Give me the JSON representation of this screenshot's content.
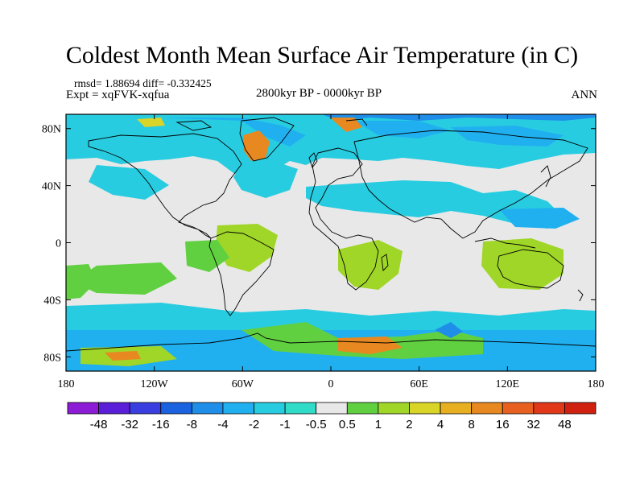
{
  "title": "Coldest Month Mean Surface Air Temperature (in C)",
  "stats": "rmsd= 1.88694  diff= -0.332425",
  "expt": "Expt = xqFVK-xqfua",
  "period": "2800kyr BP - 0000kyr BP",
  "season": "ANN",
  "lat_ticks": [
    {
      "label": "80N",
      "lat": 80
    },
    {
      "label": "40N",
      "lat": 40
    },
    {
      "label": "0",
      "lat": 0
    },
    {
      "label": "40S",
      "lat": -40
    },
    {
      "label": "80S",
      "lat": -80
    }
  ],
  "lon_ticks": [
    {
      "label": "180",
      "lon": -180
    },
    {
      "label": "120W",
      "lon": -120
    },
    {
      "label": "60W",
      "lon": -60
    },
    {
      "label": "0",
      "lon": 0
    },
    {
      "label": "60E",
      "lon": 60
    },
    {
      "label": "120E",
      "lon": 120
    },
    {
      "label": "180",
      "lon": 180
    }
  ],
  "colorbar": {
    "labels": [
      "-48",
      "-32",
      "-16",
      "-8",
      "-4",
      "-2",
      "-1",
      "-0.5",
      "0.5",
      "1",
      "2",
      "4",
      "8",
      "16",
      "32",
      "48"
    ],
    "colors": [
      "#8c1cd6",
      "#5a1ed8",
      "#3a3ee0",
      "#1a62e0",
      "#1e8ee8",
      "#20b0f0",
      "#28cce0",
      "#30dcc8",
      "#e8e8e8",
      "#60d040",
      "#a0d628",
      "#d8d428",
      "#e8b020",
      "#e88820",
      "#e86020",
      "#e03818",
      "#d02010"
    ]
  },
  "map_palette": {
    "ocean_blue": "#1e8ee8",
    "light_blue": "#20b0f0",
    "cyan": "#28cce0",
    "neutral": "#e8e8e8",
    "green": "#60d040",
    "yellowgreen": "#a0d628",
    "yellow": "#d8d428",
    "orange": "#e88820",
    "coast": "#000000"
  }
}
